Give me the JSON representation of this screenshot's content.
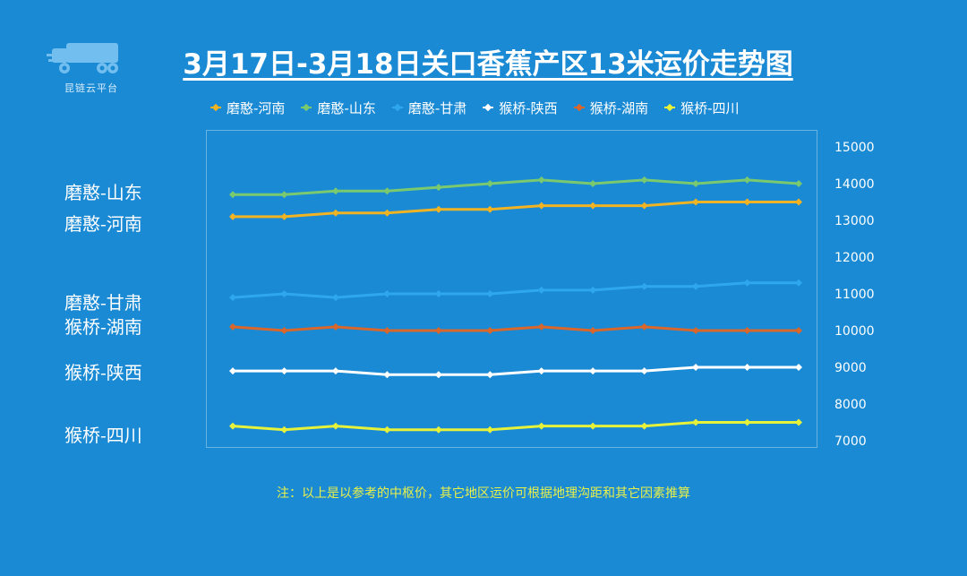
{
  "logo": {
    "text": "昆链云平台"
  },
  "chart_data": {
    "type": "line",
    "title": "3月17日-3月18日关口香蕉产区13米运价走势图",
    "ylim": [
      7000,
      15000
    ],
    "yticks": [
      "15000",
      "14000",
      "13000",
      "12000",
      "11000",
      "10000",
      "9000",
      "8000",
      "7000"
    ],
    "y_axis_position": "right",
    "legend_position": "top",
    "grid": false,
    "x": [
      1,
      2,
      3,
      4,
      5,
      6,
      7,
      8,
      9,
      10,
      11,
      12
    ],
    "series": [
      {
        "name": "磨憨-河南",
        "color": "#f0b323",
        "side_label": "磨憨-河南",
        "values": [
          13100,
          13100,
          13200,
          13200,
          13300,
          13300,
          13400,
          13400,
          13400,
          13500,
          13500,
          13500
        ]
      },
      {
        "name": "磨憨-山东",
        "color": "#7bc96f",
        "side_label": "磨憨-山东",
        "values": [
          13700,
          13700,
          13800,
          13800,
          13900,
          14000,
          14100,
          14000,
          14100,
          14000,
          14100,
          14000
        ]
      },
      {
        "name": "磨憨-甘肃",
        "color": "#2fa7ee",
        "side_label": "磨憨-甘肃",
        "values": [
          10900,
          11000,
          10900,
          11000,
          11000,
          11000,
          11100,
          11100,
          11200,
          11200,
          11300,
          11300
        ]
      },
      {
        "name": "猴桥-陕西",
        "color": "#ffffff",
        "side_label": "猴桥-陕西",
        "values": [
          8900,
          8900,
          8900,
          8800,
          8800,
          8800,
          8900,
          8900,
          8900,
          9000,
          9000,
          9000
        ]
      },
      {
        "name": "猴桥-湖南",
        "color": "#d9662b",
        "side_label": "猴桥-湖南",
        "values": [
          10100,
          10000,
          10100,
          10000,
          10000,
          10000,
          10100,
          10000,
          10100,
          10000,
          10000,
          10000
        ]
      },
      {
        "name": "猴桥-四川",
        "color": "#e6f23a",
        "side_label": "猴桥-四川",
        "values": [
          7400,
          7300,
          7400,
          7300,
          7300,
          7300,
          7400,
          7400,
          7400,
          7500,
          7500,
          7500
        ]
      }
    ]
  },
  "note": "注：以上是以参考的中枢价，其它地区运价可根据地理沟距和其它因素推算"
}
